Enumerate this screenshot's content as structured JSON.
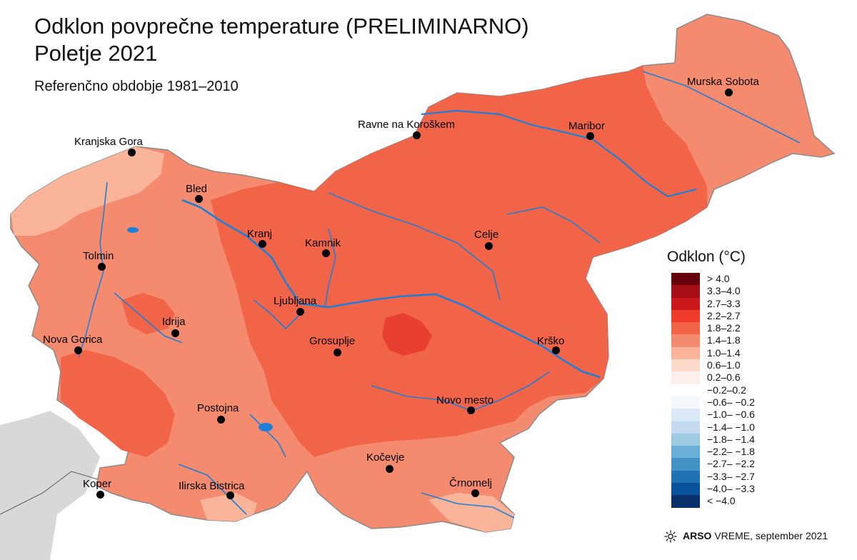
{
  "title_line1": "Odklon povprečne temperature (PRELIMINARNO)",
  "title_line2": "Poletje 2021",
  "subtitle": "Referenčno obdobje 1981–2010",
  "cities": [
    {
      "name": "Murska Sobota"
    },
    {
      "name": "Ravne na Koroškem"
    },
    {
      "name": "Maribor"
    },
    {
      "name": "Kranjska Gora"
    },
    {
      "name": "Bled"
    },
    {
      "name": "Kranj"
    },
    {
      "name": "Kamnik"
    },
    {
      "name": "Celje"
    },
    {
      "name": "Tolmin"
    },
    {
      "name": "Ljubljana"
    },
    {
      "name": "Idrija"
    },
    {
      "name": "Nova Gorica"
    },
    {
      "name": "Grosuplje"
    },
    {
      "name": "Krško"
    },
    {
      "name": "Postojna"
    },
    {
      "name": "Novo mesto"
    },
    {
      "name": "Kočevje"
    },
    {
      "name": "Koper"
    },
    {
      "name": "Ilirska Bistrica"
    },
    {
      "name": "Črnomelj"
    }
  ],
  "legend": {
    "title": "Odklon (°C)",
    "items": [
      {
        "label": "> 4.0",
        "color": "#67000d"
      },
      {
        "label": "3.3–4.0",
        "color": "#a50f15"
      },
      {
        "label": "2.7–3.3",
        "color": "#cb181d"
      },
      {
        "label": "2.2–2.7",
        "color": "#ef3b2c"
      },
      {
        "label": "1.8–2.2",
        "color": "#f26447"
      },
      {
        "label": "1.4–1.8",
        "color": "#f58b6e"
      },
      {
        "label": "1.0–1.4",
        "color": "#f9b49a"
      },
      {
        "label": "0.6–1.0",
        "color": "#fcd9c9"
      },
      {
        "label": "0.2–0.6",
        "color": "#fdf0ea"
      },
      {
        "label": "−0.2–0.2",
        "color": "#ffffff"
      },
      {
        "label": "−0.6– −0.2",
        "color": "#f4f8fd"
      },
      {
        "label": "−1.0– −0.6",
        "color": "#dbe8f6"
      },
      {
        "label": "−1.4– −1.0",
        "color": "#c2d9ee"
      },
      {
        "label": "−1.8– −1.4",
        "color": "#9ecae1"
      },
      {
        "label": "−2.2– −1.8",
        "color": "#6baed6"
      },
      {
        "label": "−2.7– −2.2",
        "color": "#4292c6"
      },
      {
        "label": "−3.3– −2.7",
        "color": "#2171b5"
      },
      {
        "label": "−4.0– −3.3",
        "color": "#08519c"
      },
      {
        "label": "< −4.0",
        "color": "#08306b"
      }
    ]
  },
  "footer": {
    "brand": "ARSO",
    "product": "VREME",
    "date": "september 2021"
  },
  "colors": {
    "river": "#1e7fd8",
    "outside_land": "#d8d8d8",
    "border": "#808080"
  }
}
